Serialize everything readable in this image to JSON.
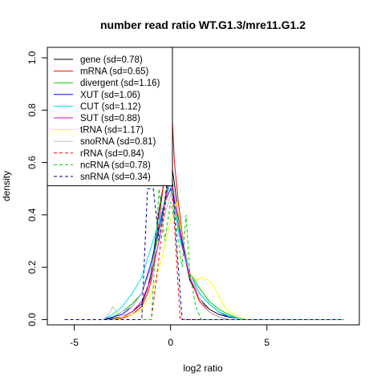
{
  "chart_data": {
    "type": "line",
    "title": "number read ratio WT.G1.3/mre11.G1.2",
    "xlabel": "log2 ratio",
    "ylabel": "density",
    "xlim": [
      -6.4,
      9.8
    ],
    "ylim": [
      -0.02,
      1.04
    ],
    "xticks": [
      -5,
      0,
      5
    ],
    "yticks": [
      0.0,
      0.2,
      0.4,
      0.6,
      0.8,
      1.0
    ],
    "legend_position": "top-left",
    "grid": false,
    "series": [
      {
        "name": "gene (sd=0.78)",
        "color": "#000000",
        "dash": "solid",
        "x": [
          -3.5,
          -3.0,
          -2.5,
          -2.0,
          -1.5,
          -1.2,
          -1.0,
          -0.8,
          -0.6,
          -0.4,
          -0.2,
          0.0,
          0.2,
          0.4,
          0.6,
          0.8,
          1.0,
          1.5,
          2.0,
          2.5,
          3.0,
          3.5,
          4.0
        ],
        "y": [
          0.0,
          0.005,
          0.01,
          0.03,
          0.06,
          0.12,
          0.18,
          0.3,
          0.42,
          0.5,
          0.58,
          0.62,
          0.52,
          0.4,
          0.3,
          0.22,
          0.15,
          0.08,
          0.04,
          0.02,
          0.01,
          0.005,
          0.0
        ]
      },
      {
        "name": "mRNA (sd=0.65)",
        "color": "#ff0000",
        "dash": "solid",
        "x": [
          -3.0,
          -2.5,
          -2.0,
          -1.5,
          -1.2,
          -1.0,
          -0.8,
          -0.6,
          -0.4,
          -0.2,
          0.0,
          0.1,
          0.2,
          0.4,
          0.6,
          0.8,
          1.0,
          1.5,
          2.0,
          2.5,
          3.0
        ],
        "y": [
          0.0,
          0.005,
          0.02,
          0.05,
          0.1,
          0.15,
          0.25,
          0.38,
          0.5,
          0.6,
          0.72,
          0.75,
          0.6,
          0.45,
          0.33,
          0.24,
          0.16,
          0.07,
          0.03,
          0.01,
          0.0
        ]
      },
      {
        "name": "divergent (sd=1.16)",
        "color": "#00cd00",
        "dash": "solid",
        "x": [
          -3.5,
          -3.0,
          -2.5,
          -2.0,
          -1.5,
          -1.0,
          -0.5,
          -0.2,
          0.0,
          0.2,
          0.5,
          1.0,
          1.5,
          2.0,
          2.5,
          3.0,
          3.5
        ],
        "y": [
          0.0,
          0.01,
          0.03,
          0.06,
          0.1,
          0.2,
          0.38,
          0.5,
          0.55,
          0.45,
          0.3,
          0.18,
          0.12,
          0.07,
          0.04,
          0.02,
          0.005
        ]
      },
      {
        "name": "XUT (sd=1.06)",
        "color": "#0000ff",
        "dash": "solid",
        "x": [
          -3.5,
          -3.0,
          -2.5,
          -2.0,
          -1.5,
          -1.0,
          -0.6,
          -0.3,
          0.0,
          0.3,
          0.6,
          1.0,
          1.5,
          2.0,
          2.5,
          3.0,
          3.5
        ],
        "y": [
          0.0,
          0.01,
          0.02,
          0.05,
          0.1,
          0.22,
          0.35,
          0.45,
          0.5,
          0.42,
          0.3,
          0.18,
          0.1,
          0.06,
          0.03,
          0.01,
          0.005
        ]
      },
      {
        "name": "CUT (sd=1.12)",
        "color": "#00e5ee",
        "dash": "solid",
        "x": [
          -3.5,
          -3.0,
          -2.5,
          -2.0,
          -1.5,
          -1.0,
          -0.5,
          -0.2,
          0.0,
          0.2,
          0.5,
          1.0,
          1.5,
          2.0,
          2.5,
          3.0,
          3.5,
          4.0
        ],
        "y": [
          0.0,
          0.02,
          0.05,
          0.1,
          0.16,
          0.28,
          0.4,
          0.48,
          0.52,
          0.42,
          0.3,
          0.18,
          0.1,
          0.06,
          0.03,
          0.015,
          0.005,
          0.0
        ]
      },
      {
        "name": "SUT (sd=0.88)",
        "color": "#e000e0",
        "dash": "solid",
        "x": [
          -3.0,
          -2.5,
          -2.0,
          -1.5,
          -1.0,
          -0.6,
          -0.3,
          0.0,
          0.3,
          0.6,
          1.0,
          1.5,
          2.0,
          2.5,
          3.0
        ],
        "y": [
          0.0,
          0.01,
          0.03,
          0.07,
          0.16,
          0.3,
          0.45,
          0.55,
          0.42,
          0.28,
          0.16,
          0.08,
          0.03,
          0.01,
          0.0
        ]
      },
      {
        "name": "tRNA (sd=1.17)",
        "color": "#ffff00",
        "dash": "solid",
        "x": [
          -3.0,
          -2.5,
          -2.0,
          -1.5,
          -1.0,
          -0.5,
          0.0,
          0.3,
          0.6,
          1.0,
          1.3,
          1.6,
          2.0,
          2.3,
          2.7,
          3.0,
          3.5,
          4.0
        ],
        "y": [
          0.0,
          0.01,
          0.02,
          0.04,
          0.1,
          0.22,
          0.38,
          0.45,
          0.32,
          0.18,
          0.15,
          0.16,
          0.15,
          0.12,
          0.06,
          0.03,
          0.01,
          0.0
        ]
      },
      {
        "name": "snoRNA (sd=0.81)",
        "color": "#bebebe",
        "dash": "solid",
        "x": [
          -3.5,
          -3.2,
          -3.0,
          -2.7,
          -2.5,
          -2.0,
          -1.5,
          -1.0,
          -0.5,
          0.0,
          0.5,
          1.0,
          1.5,
          2.0,
          2.5,
          3.0
        ],
        "y": [
          0.0,
          0.02,
          0.05,
          0.02,
          0.03,
          0.05,
          0.1,
          0.2,
          0.35,
          0.48,
          0.35,
          0.18,
          0.08,
          0.03,
          0.01,
          0.0
        ]
      },
      {
        "name": "rRNA (sd=0.84)",
        "color": "#ff0000",
        "dash": "dashed",
        "x": [
          -5.5,
          -1.0,
          -0.5,
          0.0,
          0.5,
          1.0,
          9.0
        ],
        "y": [
          0.0,
          0.0,
          0.3,
          0.6,
          0.0,
          0.0,
          0.0
        ]
      },
      {
        "name": "ncRNA (sd=0.78)",
        "color": "#00cd00",
        "dash": "dashed",
        "x": [
          -5.5,
          -1.0,
          -0.6,
          -0.3,
          0.0,
          0.3,
          0.6,
          0.8,
          1.0,
          1.3,
          1.6,
          9.0
        ],
        "y": [
          0.0,
          0.0,
          0.5,
          0.3,
          0.45,
          0.35,
          0.2,
          0.4,
          0.18,
          0.05,
          0.0,
          0.0
        ]
      },
      {
        "name": "snRNA (sd=0.34)",
        "color": "#00008b",
        "dash": "dashed",
        "x": [
          -5.5,
          -1.5,
          -1.2,
          -0.9,
          -0.6,
          -0.3,
          0.0,
          0.3,
          0.6,
          9.0
        ],
        "y": [
          0.0,
          0.0,
          0.5,
          0.5,
          0.3,
          0.45,
          0.65,
          0.3,
          0.0,
          0.0
        ]
      }
    ]
  }
}
